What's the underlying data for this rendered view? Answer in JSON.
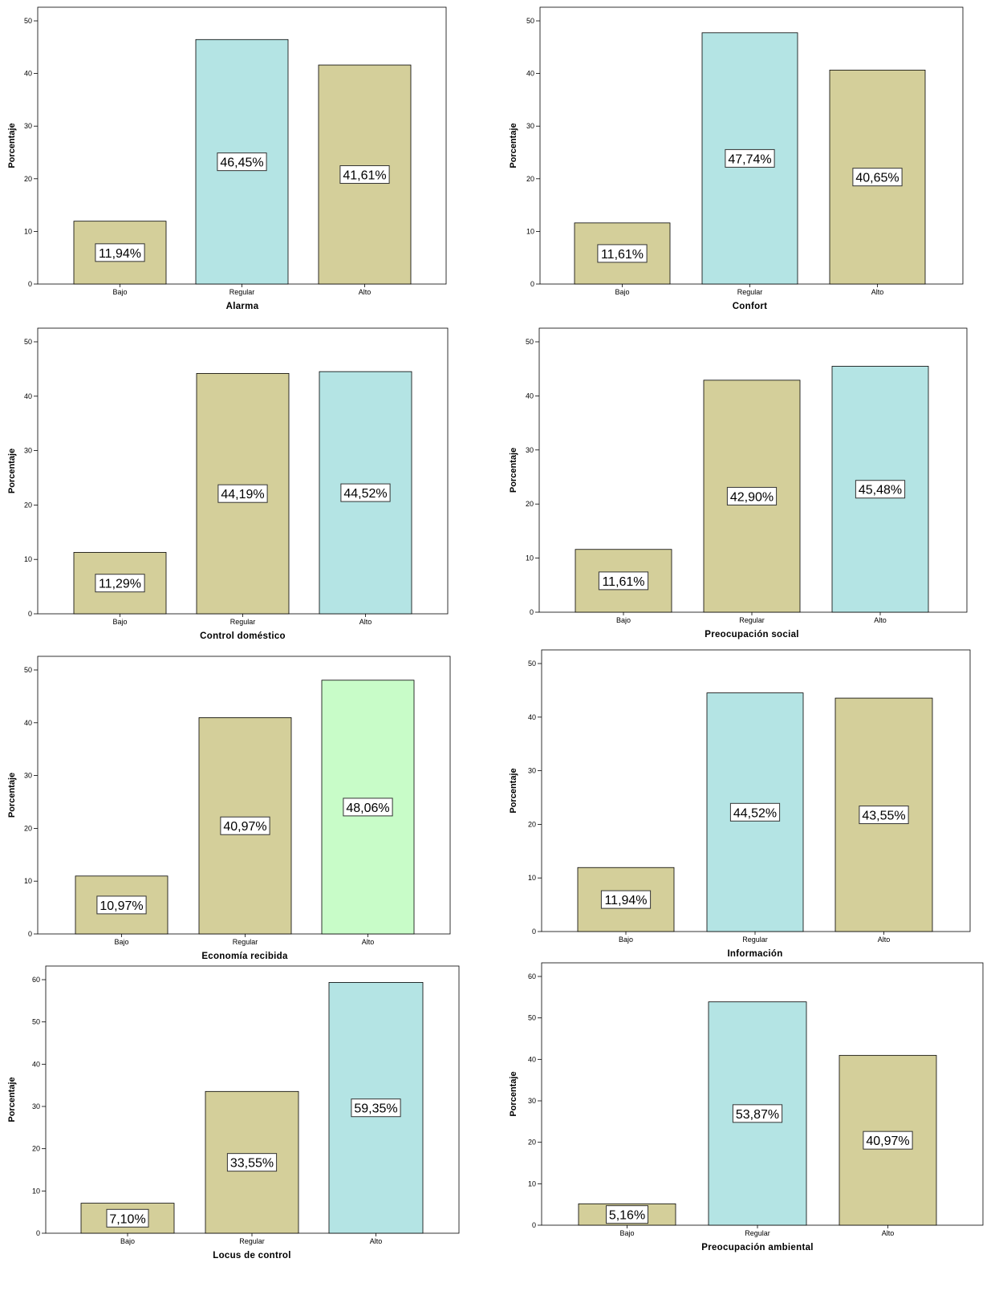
{
  "chart_data": [
    {
      "type": "bar",
      "categories": [
        "Bajo",
        "Regular",
        "Alto"
      ],
      "values": [
        11.94,
        46.45,
        41.61
      ],
      "labels": [
        "11,94%",
        "46,45%",
        "41,61%"
      ],
      "colors": [
        "#d4cf9a",
        "#b4e4e4",
        "#d4cf9a"
      ],
      "xlabel": "Alarma",
      "ylabel": "Porcentaje",
      "ylim": [
        0,
        50
      ],
      "yticks": [
        "0",
        "10",
        "20",
        "30",
        "40",
        "50"
      ]
    },
    {
      "type": "bar",
      "categories": [
        "Bajo",
        "Regular",
        "Alto"
      ],
      "values": [
        11.61,
        47.74,
        40.65
      ],
      "labels": [
        "11,61%",
        "47,74%",
        "40,65%"
      ],
      "colors": [
        "#d4cf9a",
        "#b4e4e4",
        "#d4cf9a"
      ],
      "xlabel": "Confort",
      "ylabel": "Porcentaje",
      "ylim": [
        0,
        50
      ],
      "yticks": [
        "0",
        "10",
        "20",
        "30",
        "40",
        "50"
      ]
    },
    {
      "type": "bar",
      "categories": [
        "Bajo",
        "Regular",
        "Alto"
      ],
      "values": [
        11.29,
        44.19,
        44.52
      ],
      "labels": [
        "11,29%",
        "44,19%",
        "44,52%"
      ],
      "colors": [
        "#d4cf9a",
        "#d4cf9a",
        "#b4e4e4"
      ],
      "xlabel": "Control doméstico",
      "ylabel": "Porcentaje",
      "ylim": [
        0,
        50
      ],
      "yticks": [
        "0",
        "10",
        "20",
        "30",
        "40",
        "50"
      ]
    },
    {
      "type": "bar",
      "categories": [
        "Bajo",
        "Regular",
        "Alto"
      ],
      "values": [
        11.61,
        42.9,
        45.48
      ],
      "labels": [
        "11,61%",
        "42,90%",
        "45,48%"
      ],
      "colors": [
        "#d4cf9a",
        "#d4cf9a",
        "#b4e4e4"
      ],
      "xlabel": "Preocupación social",
      "ylabel": "Porcentaje",
      "ylim": [
        0,
        50
      ],
      "yticks": [
        "0",
        "10",
        "20",
        "30",
        "40",
        "50"
      ]
    },
    {
      "type": "bar",
      "categories": [
        "Bajo",
        "Regular",
        "Alto"
      ],
      "values": [
        10.97,
        40.97,
        48.06
      ],
      "labels": [
        "10,97%",
        "40,97%",
        "48,06%"
      ],
      "colors": [
        "#d4cf9a",
        "#d4cf9a",
        "#c8fcc8"
      ],
      "xlabel": "Economía recibida",
      "ylabel": "Porcentaje",
      "ylim": [
        0,
        50
      ],
      "yticks": [
        "0",
        "10",
        "20",
        "30",
        "40",
        "50"
      ]
    },
    {
      "type": "bar",
      "categories": [
        "Bajo",
        "Regular",
        "Alto"
      ],
      "values": [
        11.94,
        44.52,
        43.55
      ],
      "labels": [
        "11,94%",
        "44,52%",
        "43,55%"
      ],
      "colors": [
        "#d4cf9a",
        "#b4e4e4",
        "#d4cf9a"
      ],
      "xlabel": "Información",
      "ylabel": "Porcentaje",
      "ylim": [
        0,
        50
      ],
      "yticks": [
        "0",
        "10",
        "20",
        "30",
        "40",
        "50"
      ]
    },
    {
      "type": "bar",
      "categories": [
        "Bajo",
        "Regular",
        "Alto"
      ],
      "values": [
        7.1,
        33.55,
        59.35
      ],
      "labels": [
        "7,10%",
        "33,55%",
        "59,35%"
      ],
      "colors": [
        "#d4cf9a",
        "#d4cf9a",
        "#b4e4e4"
      ],
      "xlabel": "Locus de control",
      "ylabel": "Porcentaje",
      "ylim": [
        0,
        60
      ],
      "yticks": [
        "0",
        "10",
        "20",
        "30",
        "40",
        "50",
        "60"
      ]
    },
    {
      "type": "bar",
      "categories": [
        "Bajo",
        "Regular",
        "Alto"
      ],
      "values": [
        5.16,
        53.87,
        40.97
      ],
      "labels": [
        "5,16%",
        "53,87%",
        "40,97%"
      ],
      "colors": [
        "#d4cf9a",
        "#b4e4e4",
        "#d4cf9a"
      ],
      "xlabel": "Preocupación ambiental",
      "ylabel": "Porcentaje",
      "ylim": [
        0,
        60
      ],
      "yticks": [
        "0",
        "10",
        "20",
        "30",
        "40",
        "50",
        "60"
      ]
    }
  ]
}
